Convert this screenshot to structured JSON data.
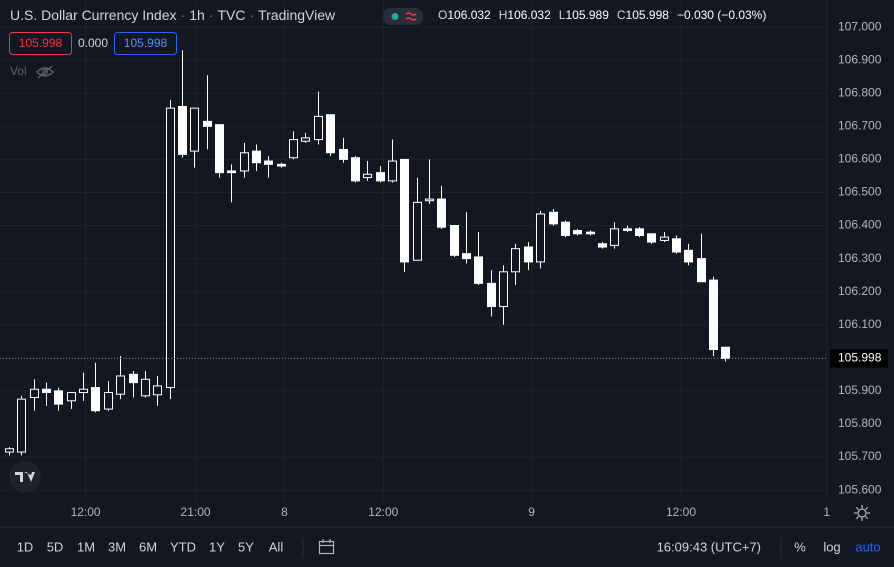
{
  "chart_data": {
    "type": "candlestick",
    "title": "U.S. Dollar Currency Index",
    "interval": "1h",
    "source": "TVC",
    "publisher": "TradingView",
    "legend": [
      {
        "label": "O",
        "value": "106.032"
      },
      {
        "label": "H",
        "value": "106.032"
      },
      {
        "label": "L",
        "value": "105.989"
      },
      {
        "label": "C",
        "value": "105.998"
      }
    ],
    "change": "−0.030 (−0.03%)",
    "bid": "105.998",
    "spread": "0.000",
    "ask": "105.998",
    "volume_label": "Vol",
    "open": [
      105.715,
      105.715,
      105.88,
      105.905,
      105.9,
      105.87,
      105.895,
      105.91,
      105.845,
      105.89,
      105.95,
      105.885,
      105.888,
      105.91,
      106.76,
      106.625,
      106.715,
      106.705,
      106.565,
      106.565,
      106.625,
      106.595,
      106.585,
      106.605,
      106.655,
      106.66,
      106.735,
      106.63,
      106.605,
      106.545,
      106.56,
      106.535,
      106.6,
      106.295,
      106.475,
      106.48,
      106.4,
      106.315,
      106.305,
      106.225,
      106.155,
      106.26,
      106.335,
      106.29,
      106.44,
      106.41,
      106.385,
      106.38,
      106.345,
      106.34,
      106.39,
      106.39,
      106.375,
      106.355,
      106.36,
      106.325,
      106.3,
      106.235,
      106.032
    ],
    "high": [
      105.73,
      105.885,
      105.935,
      105.925,
      105.91,
      105.895,
      105.955,
      105.985,
      105.93,
      106.005,
      105.96,
      105.96,
      105.945,
      106.78,
      106.93,
      106.755,
      106.855,
      106.705,
      106.585,
      106.65,
      106.645,
      106.61,
      106.59,
      106.685,
      106.68,
      106.805,
      106.735,
      106.665,
      106.61,
      106.595,
      106.58,
      106.66,
      106.6,
      106.545,
      106.6,
      106.52,
      106.4,
      106.44,
      106.38,
      106.265,
      106.28,
      106.345,
      106.35,
      106.445,
      106.45,
      106.415,
      106.39,
      106.385,
      106.35,
      106.41,
      106.4,
      106.395,
      106.375,
      106.38,
      106.37,
      106.345,
      106.375,
      106.245,
      106.032
    ],
    "low": [
      105.705,
      105.705,
      105.84,
      105.855,
      105.84,
      105.845,
      105.87,
      105.835,
      105.84,
      105.875,
      105.88,
      105.88,
      105.855,
      105.875,
      106.605,
      106.575,
      106.63,
      106.545,
      106.47,
      106.545,
      106.565,
      106.545,
      106.575,
      106.6,
      106.65,
      106.645,
      106.61,
      106.59,
      106.53,
      106.535,
      106.53,
      106.53,
      106.26,
      106.295,
      106.465,
      106.39,
      106.305,
      106.285,
      106.22,
      106.125,
      106.1,
      106.22,
      106.265,
      106.27,
      106.4,
      106.365,
      106.37,
      106.37,
      106.33,
      106.33,
      106.38,
      106.365,
      106.345,
      106.35,
      106.315,
      106.28,
      106.23,
      106.005,
      105.989
    ],
    "close": [
      105.725,
      105.875,
      105.905,
      105.895,
      105.86,
      105.895,
      105.905,
      105.84,
      105.895,
      105.945,
      105.925,
      105.935,
      105.915,
      106.755,
      106.615,
      106.755,
      106.7,
      106.56,
      106.56,
      106.62,
      106.59,
      106.585,
      106.58,
      106.66,
      106.665,
      106.73,
      106.62,
      106.6,
      106.535,
      106.555,
      106.535,
      106.595,
      106.29,
      106.47,
      106.48,
      106.395,
      106.31,
      106.3,
      106.225,
      106.155,
      106.26,
      106.33,
      106.29,
      106.435,
      106.405,
      106.37,
      106.375,
      106.375,
      106.335,
      106.39,
      106.385,
      106.37,
      106.35,
      106.365,
      106.32,
      106.29,
      106.23,
      106.025,
      105.998
    ],
    "last_price": {
      "value": 105.998,
      "label": "105.998"
    },
    "xlim": [
      -0.73,
      66.3
    ],
    "xticks": [
      {
        "value": 6.2,
        "label": "12:00"
      },
      {
        "value": 15.1,
        "label": "21:00"
      },
      {
        "value": 22.3,
        "label": "8"
      },
      {
        "value": 30.3,
        "label": "12:00"
      },
      {
        "value": 42.3,
        "label": "9"
      },
      {
        "value": 54.4,
        "label": "12:00"
      },
      {
        "value": 66.2,
        "label": "1"
      }
    ],
    "ylim": [
      105.57,
      107.082
    ],
    "yticks": [
      {
        "value": 105.6,
        "label": "105.600"
      },
      {
        "value": 105.7,
        "label": "105.700"
      },
      {
        "value": 105.8,
        "label": "105.800"
      },
      {
        "value": 105.9,
        "label": "105.900"
      },
      {
        "value": 106.0,
        "label": "106.000"
      },
      {
        "value": 106.1,
        "label": "106.100"
      },
      {
        "value": 106.2,
        "label": "106.200"
      },
      {
        "value": 106.3,
        "label": "106.300"
      },
      {
        "value": 106.4,
        "label": "106.400"
      },
      {
        "value": 106.5,
        "label": "106.500"
      },
      {
        "value": 106.6,
        "label": "106.600"
      },
      {
        "value": 106.7,
        "label": "106.700"
      },
      {
        "value": 106.8,
        "label": "106.800"
      },
      {
        "value": 106.9,
        "label": "106.900"
      },
      {
        "value": 107.0,
        "label": "107.000"
      }
    ],
    "grid": true,
    "color": "#ffffff",
    "ranges": [
      "1D",
      "5D",
      "1M",
      "3M",
      "6M",
      "YTD",
      "1Y",
      "5Y",
      "All"
    ],
    "clock": "16:09:43 (UTC+7)",
    "scale_options": [
      "%",
      "log",
      "auto"
    ]
  }
}
